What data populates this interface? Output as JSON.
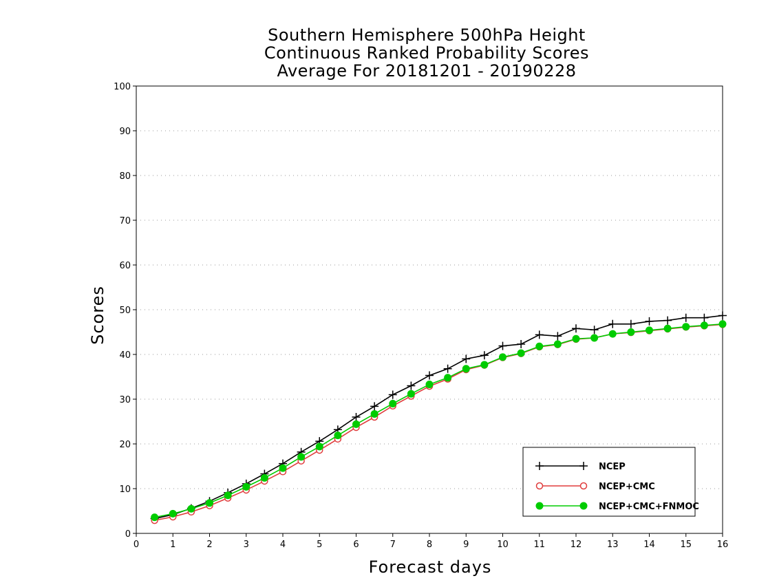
{
  "chart_data": {
    "type": "line",
    "title": [
      "Southern Hemisphere 500hPa Height",
      "Continuous Ranked Probability Scores",
      "Average For 20181201 - 20190228"
    ],
    "xlabel": "Forecast days",
    "ylabel": "Scores",
    "xlim": [
      0,
      16
    ],
    "ylim": [
      0,
      100
    ],
    "xticks": [
      "0",
      "1",
      "2",
      "3",
      "4",
      "5",
      "6",
      "7",
      "8",
      "9",
      "10",
      "11",
      "12",
      "13",
      "14",
      "15",
      "16"
    ],
    "yticks": [
      "0",
      "10",
      "20",
      "30",
      "40",
      "50",
      "60",
      "70",
      "80",
      "90",
      "100"
    ],
    "grid": "horizontal dotted",
    "legend_position": "bottom-right",
    "x": [
      0.5,
      1,
      1.5,
      2,
      2.5,
      3,
      3.5,
      4,
      4.5,
      5,
      5.5,
      6,
      6.5,
      7,
      7.5,
      8,
      8.5,
      9,
      9.5,
      10,
      10.5,
      11,
      11.5,
      12,
      12.5,
      13,
      13.5,
      14,
      14.5,
      15,
      15.5,
      16
    ],
    "series": [
      {
        "name": "NCEP",
        "color": "#000000",
        "marker": "plus",
        "values": [
          3.3,
          4.2,
          5.6,
          7.2,
          9.1,
          11.1,
          13.3,
          15.6,
          18.2,
          20.6,
          23.2,
          26.0,
          28.4,
          31.0,
          33.0,
          35.3,
          36.8,
          39.0,
          39.8,
          41.9,
          42.3,
          44.4,
          44.1,
          45.8,
          45.5,
          46.8,
          46.8,
          47.4,
          47.6,
          48.2,
          48.2,
          48.7
        ]
      },
      {
        "name": "NCEP+CMC",
        "color": "#e03c3c",
        "marker": "open-circle",
        "values": [
          2.9,
          3.7,
          4.8,
          6.2,
          7.9,
          9.7,
          11.7,
          13.8,
          16.2,
          18.6,
          21.1,
          23.7,
          26.0,
          28.5,
          30.7,
          32.9,
          34.5,
          36.6,
          37.6,
          39.3,
          40.2,
          41.7,
          42.2,
          43.4,
          43.7,
          44.6,
          44.9,
          45.3,
          45.7,
          46.1,
          46.4,
          46.7
        ]
      },
      {
        "name": "NCEP+CMC+FNMOC",
        "color": "#00cc00",
        "marker": "filled-circle",
        "values": [
          3.6,
          4.4,
          5.5,
          6.8,
          8.5,
          10.4,
          12.4,
          14.6,
          17.1,
          19.4,
          21.9,
          24.4,
          26.7,
          29.0,
          31.2,
          33.3,
          34.8,
          36.8,
          37.7,
          39.4,
          40.3,
          41.8,
          42.3,
          43.5,
          43.7,
          44.6,
          45.0,
          45.4,
          45.8,
          46.2,
          46.5,
          46.8
        ]
      }
    ]
  }
}
